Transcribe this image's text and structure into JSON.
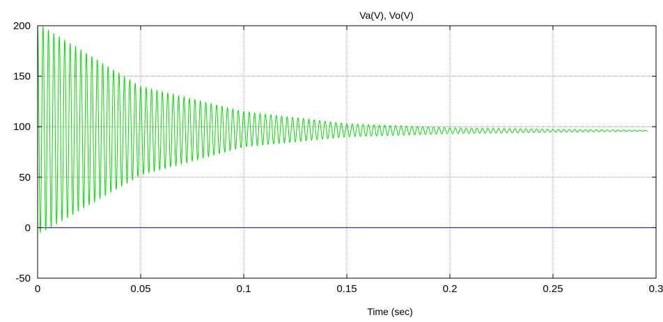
{
  "chart_data": {
    "type": "line",
    "title": "Va(V), Vo(V)",
    "xlabel": "Time (sec)",
    "ylabel": "",
    "xlim": [
      0,
      0.3
    ],
    "ylim": [
      -50,
      200
    ],
    "x_ticks": [
      0,
      0.05,
      0.1,
      0.15,
      0.2,
      0.25,
      0.3
    ],
    "x_tick_labels": [
      "0",
      "0.05",
      "0.1",
      "0.15",
      "0.2",
      "0.25",
      "0.3"
    ],
    "y_ticks": [
      -50,
      0,
      50,
      100,
      150,
      200
    ],
    "y_tick_labels": [
      "-50",
      "0",
      "50",
      "100",
      "150",
      "200"
    ],
    "grid": true,
    "series": [
      {
        "color": "#00dd00",
        "style": "damped oscillation",
        "t_end": 0.296,
        "final_value": 96,
        "peaks": [
          {
            "x": 0.002,
            "upper": 200,
            "lower": -5
          },
          {
            "x": 0.05,
            "upper": 140,
            "lower": 52
          },
          {
            "x": 0.1,
            "upper": 115,
            "lower": 80
          },
          {
            "x": 0.15,
            "upper": 103,
            "lower": 90
          },
          {
            "x": 0.2,
            "upper": 99,
            "lower": 93
          },
          {
            "x": 0.25,
            "upper": 97.5,
            "lower": 94.5
          },
          {
            "x": 0.296,
            "upper": 96.5,
            "lower": 95.5
          }
        ],
        "oscillation_frequency_hz": 380
      },
      {
        "color": "#0000cc",
        "style": "constant",
        "x": [
          0,
          0.3
        ],
        "values": [
          0,
          0
        ]
      }
    ]
  }
}
